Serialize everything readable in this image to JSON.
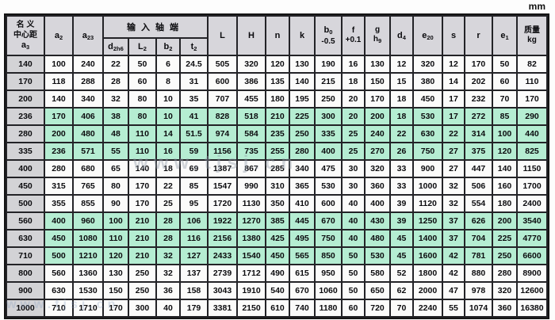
{
  "unit_label": "mm",
  "watermark": {
    "text": "www.tjsj.cn"
  },
  "table": {
    "header": {
      "col_center": {
        "l1": "名 义",
        "l2": "中心距",
        "sym": "a",
        "sub": "3"
      },
      "col_a2": {
        "sym": "a",
        "sub": "2"
      },
      "col_a23": {
        "sym": "a",
        "sub": "23"
      },
      "group_input_shaft": "输入轴端",
      "col_d": {
        "sym": "d",
        "sub": "2h6"
      },
      "col_L2": {
        "sym": "L",
        "sub": "2"
      },
      "col_b2": {
        "sym": "b",
        "sub": "2"
      },
      "col_t2": {
        "sym": "t",
        "sub": "2"
      },
      "col_L": {
        "sym": "L"
      },
      "col_H": {
        "sym": "H"
      },
      "col_n": {
        "sym": "n"
      },
      "col_k": {
        "sym": "k"
      },
      "col_b0": {
        "sym": "b",
        "sub": "0",
        "tol": "-0.5"
      },
      "col_f": {
        "sym": "f",
        "tol": "+0.1"
      },
      "col_g": {
        "sym": "g",
        "tolsym": "h",
        "tolsub": "9"
      },
      "col_d4": {
        "sym": "d",
        "sub": "4"
      },
      "col_e20": {
        "sym": "e",
        "sub": "20"
      },
      "col_s": {
        "sym": "s"
      },
      "col_r": {
        "sym": "r"
      },
      "col_e1": {
        "sym": "e",
        "sub": "1"
      },
      "col_mass": {
        "l1": "质量",
        "l2": "kg"
      }
    },
    "green_row_indices": [
      3,
      4,
      5,
      9,
      10,
      11
    ],
    "rows": [
      [
        "140",
        "100",
        "240",
        "22",
        "50",
        "6",
        "24.5",
        "505",
        "320",
        "120",
        "130",
        "190",
        "16",
        "130",
        "12",
        "320",
        "12",
        "170",
        "50",
        "82"
      ],
      [
        "170",
        "118",
        "288",
        "28",
        "60",
        "8",
        "31",
        "600",
        "386",
        "135",
        "140",
        "215",
        "18",
        "150",
        "15",
        "380",
        "14",
        "202",
        "60",
        "110"
      ],
      [
        "200",
        "140",
        "340",
        "32",
        "80",
        "10",
        "35",
        "707",
        "455",
        "180",
        "195",
        "250",
        "20",
        "170",
        "18",
        "450",
        "17",
        "232",
        "70",
        "170"
      ],
      [
        "236",
        "170",
        "406",
        "38",
        "80",
        "10",
        "41",
        "828",
        "518",
        "210",
        "225",
        "300",
        "20",
        "200",
        "18",
        "530",
        "17",
        "272",
        "85",
        "290"
      ],
      [
        "280",
        "200",
        "480",
        "48",
        "110",
        "14",
        "51.5",
        "974",
        "584",
        "235",
        "250",
        "335",
        "25",
        "240",
        "22",
        "630",
        "22",
        "314",
        "100",
        "440"
      ],
      [
        "335",
        "236",
        "571",
        "55",
        "110",
        "16",
        "59",
        "1156",
        "735",
        "255",
        "280",
        "400",
        "25",
        "270",
        "26",
        "750",
        "27",
        "375",
        "120",
        "825"
      ],
      [
        "400",
        "280",
        "680",
        "65",
        "140",
        "18",
        "69",
        "1387",
        "867",
        "285",
        "340",
        "475",
        "30",
        "320",
        "33",
        "900",
        "27",
        "447",
        "140",
        "1150"
      ],
      [
        "450",
        "315",
        "765",
        "80",
        "170",
        "22",
        "85",
        "1547",
        "990",
        "310",
        "365",
        "530",
        "30",
        "360",
        "33",
        "1000",
        "32",
        "506",
        "160",
        "1700"
      ],
      [
        "500",
        "355",
        "855",
        "90",
        "170",
        "25",
        "95",
        "1720",
        "1130",
        "350",
        "410",
        "600",
        "40",
        "400",
        "39",
        "1120",
        "32",
        "554",
        "180",
        "2400"
      ],
      [
        "560",
        "400",
        "960",
        "100",
        "210",
        "28",
        "106",
        "1922",
        "1270",
        "385",
        "445",
        "670",
        "40",
        "430",
        "39",
        "1250",
        "37",
        "626",
        "200",
        "3540"
      ],
      [
        "630",
        "450",
        "1080",
        "110",
        "210",
        "28",
        "116",
        "2156",
        "1380",
        "425",
        "495",
        "750",
        "40",
        "480",
        "45",
        "1400",
        "37",
        "704",
        "225",
        "4770"
      ],
      [
        "710",
        "500",
        "1210",
        "120",
        "210",
        "32",
        "127",
        "2433",
        "1540",
        "450",
        "565",
        "850",
        "50",
        "530",
        "45",
        "1600",
        "42",
        "781",
        "250",
        "6600"
      ],
      [
        "800",
        "560",
        "1360",
        "130",
        "250",
        "32",
        "137",
        "2739",
        "1712",
        "490",
        "615",
        "950",
        "50",
        "580",
        "52",
        "1800",
        "42",
        "880",
        "280",
        "8900"
      ],
      [
        "900",
        "630",
        "1530",
        "150",
        "250",
        "36",
        "158",
        "3043",
        "1910",
        "540",
        "670",
        "1060",
        "50",
        "650",
        "62",
        "2000",
        "47",
        "978",
        "320",
        "12600"
      ],
      [
        "1000",
        "710",
        "1710",
        "170",
        "300",
        "40",
        "179",
        "3381",
        "2150",
        "610",
        "740",
        "1180",
        "60",
        "720",
        "70",
        "2240",
        "55",
        "1074",
        "360",
        "16380"
      ]
    ]
  }
}
